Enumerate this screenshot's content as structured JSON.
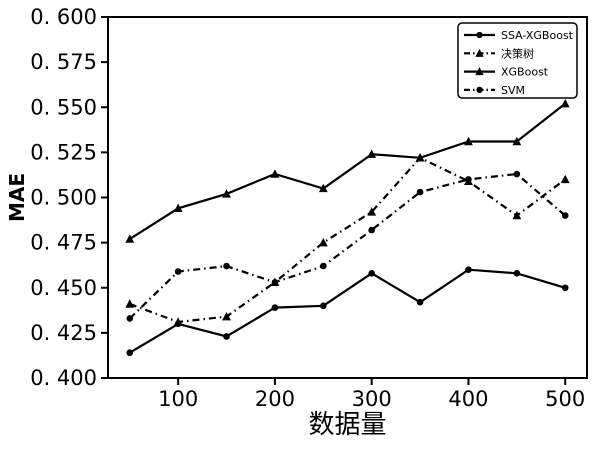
{
  "figure": {
    "background": "#ffffff",
    "foreground": "#000000"
  },
  "chart_data": {
    "type": "line",
    "title": "",
    "xlabel": "数据量",
    "ylabel": "MAE",
    "x": [
      50,
      100,
      150,
      200,
      250,
      300,
      350,
      400,
      450,
      500
    ],
    "xlim": [
      27.5,
      522.5
    ],
    "ylim": [
      0.4,
      0.6
    ],
    "grid": false,
    "xticks": {
      "values": [
        100,
        200,
        300,
        400,
        500
      ],
      "labels": [
        "100",
        "200",
        "300",
        "400",
        "500"
      ]
    },
    "yticks": {
      "values": [
        0.4,
        0.425,
        0.45,
        0.475,
        0.5,
        0.525,
        0.55,
        0.575,
        0.6
      ],
      "labels": [
        "0. 400",
        "0. 425",
        "0. 450",
        "0. 475",
        "0. 500",
        "0. 525",
        "0. 550",
        "0. 575",
        "0. 600"
      ]
    },
    "legend": {
      "position": "upper-right",
      "border": true
    },
    "series": [
      {
        "id": "ssa-xgboost",
        "name": "SSA-XGBoost",
        "line": "solid",
        "marker": "circle",
        "color": "#000000",
        "values": [
          0.414,
          0.43,
          0.423,
          0.439,
          0.44,
          0.458,
          0.442,
          0.46,
          0.458,
          0.45
        ]
      },
      {
        "id": "decision-tree",
        "name": "决策树",
        "line": "dashdot",
        "marker": "triangle",
        "color": "#000000",
        "values": [
          0.441,
          0.431,
          0.434,
          0.453,
          0.475,
          0.492,
          0.522,
          0.509,
          0.49,
          0.51
        ]
      },
      {
        "id": "xgboost",
        "name": "XGBoost",
        "line": "solid",
        "marker": "triangle",
        "color": "#000000",
        "values": [
          0.477,
          0.494,
          0.502,
          0.513,
          0.505,
          0.524,
          0.522,
          0.531,
          0.531,
          0.552
        ]
      },
      {
        "id": "svm",
        "name": "SVM",
        "line": "dashdot",
        "marker": "circle",
        "color": "#000000",
        "values": [
          0.433,
          0.459,
          0.462,
          0.453,
          0.462,
          0.482,
          0.503,
          0.51,
          0.513,
          0.49
        ]
      }
    ]
  }
}
